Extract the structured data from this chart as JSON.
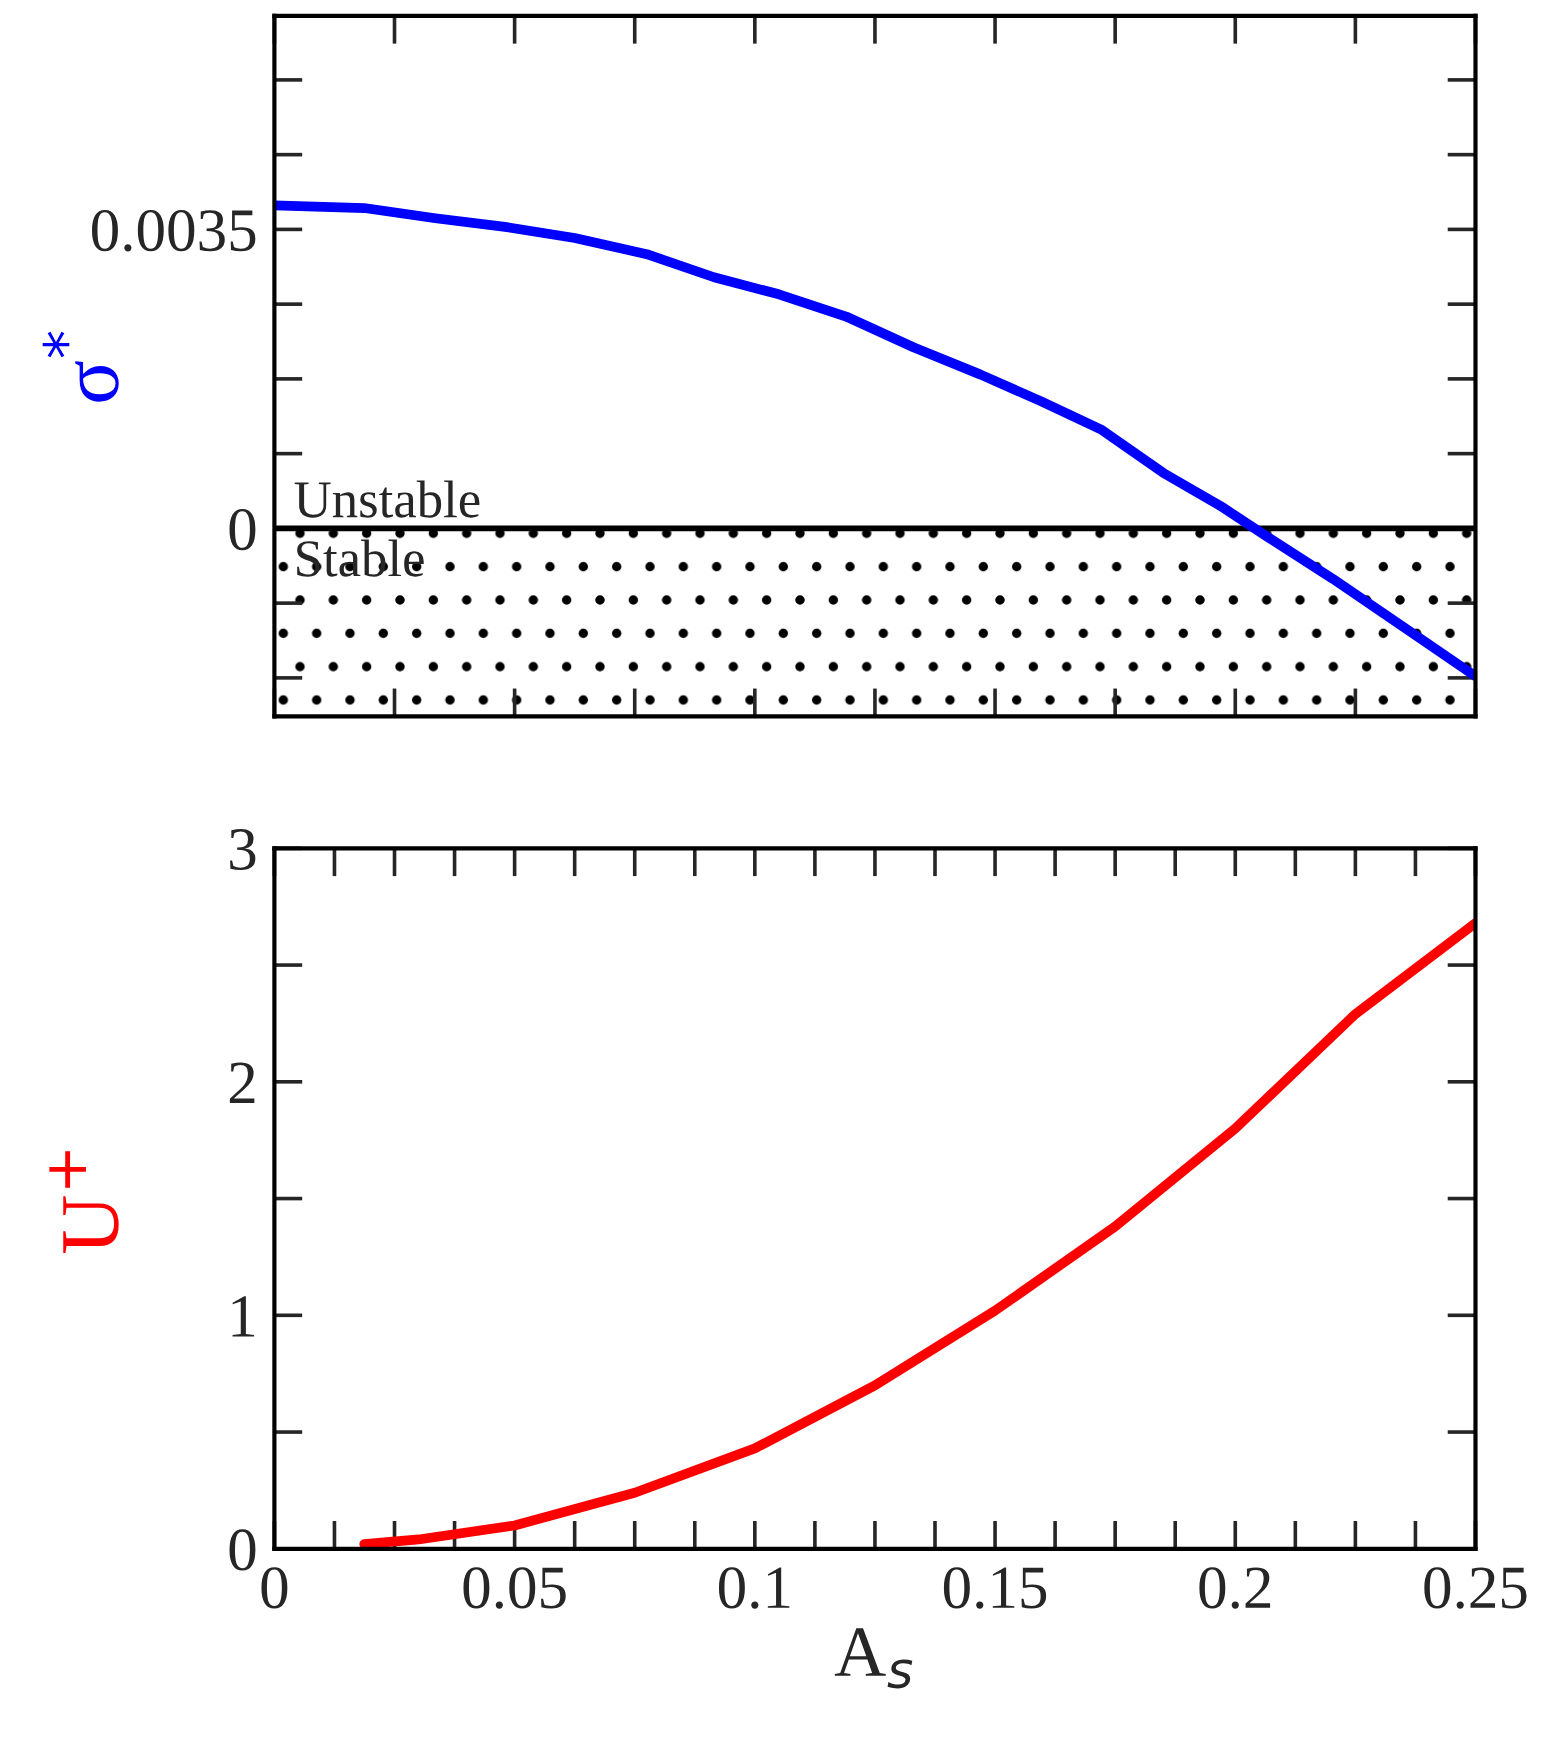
{
  "chart_data": [
    {
      "type": "line",
      "ylabel": "σ$^{*}$",
      "x": [
        0,
        0.0187,
        0.0335,
        0.048,
        0.0625,
        0.0775,
        0.0915,
        0.105,
        0.119,
        0.133,
        0.147,
        0.1595,
        0.172,
        0.185,
        0.197,
        0.2067,
        0.2203,
        0.2357,
        0.25
      ],
      "series": [
        {
          "color": "#0000ff",
          "values": [
            0.00378,
            0.00375,
            0.00363,
            0.00353,
            0.0034,
            0.00321,
            0.00294,
            0.00274,
            0.00248,
            0.00212,
            0.0018,
            0.00149,
            0.00116,
            0.00065,
            0.00026,
            -0.0001,
            -0.00059,
            -0.00118,
            -0.00173
          ]
        }
      ],
      "xlim": [
        0,
        0.25
      ],
      "xticks": [
        0,
        {
          "value": 0.025,
          "label": null
        },
        0.05,
        {
          "value": 0.075,
          "label": null
        },
        0.1,
        {
          "value": 0.125,
          "label": null
        },
        0.15,
        {
          "value": 0.175,
          "label": null
        },
        0.2,
        {
          "value": 0.225,
          "label": null
        },
        0.25
      ],
      "ylim": [
        -0.0022,
        0.006
      ],
      "yticks": [
        {
          "value": -0.00175,
          "label": null
        },
        {
          "value": -0.000875,
          "label": null
        },
        0,
        {
          "value": 0.000875,
          "label": null
        },
        {
          "value": 0.00175,
          "label": null
        },
        {
          "value": 0.002625,
          "label": null
        },
        0.0035,
        {
          "value": 0.004375,
          "label": null
        },
        {
          "value": 0.00525,
          "label": null
        }
      ],
      "tick_labels": "y",
      "grid": false,
      "legend": false,
      "bands": [
        {
          "axis": "y",
          "from": -0.0022,
          "to": 0,
          "label": "Stable"
        }
      ],
      "ref_lines": [
        {
          "axis": "y",
          "value": 0,
          "label": "Unstable"
        }
      ]
    },
    {
      "type": "line",
      "xlabel": "A$_{s}$",
      "ylabel": "U$^{+}$",
      "x": [
        0.0187,
        0.03,
        0.05,
        0.075,
        0.1,
        0.125,
        0.15,
        0.175,
        0.2,
        0.225,
        0.25
      ],
      "series": [
        {
          "color": "#ff0000",
          "values": [
            0.02,
            0.04,
            0.1,
            0.24,
            0.43,
            0.7,
            1.02,
            1.38,
            1.8,
            2.29,
            2.68
          ]
        }
      ],
      "xlim": [
        0,
        0.25
      ],
      "xticks": [
        0,
        {
          "value": 0.0125,
          "label": null
        },
        {
          "value": 0.025,
          "label": null
        },
        {
          "value": 0.0375,
          "label": null
        },
        0.05,
        {
          "value": 0.0625,
          "label": null
        },
        {
          "value": 0.075,
          "label": null
        },
        {
          "value": 0.0875,
          "label": null
        },
        0.1,
        {
          "value": 0.1125,
          "label": null
        },
        {
          "value": 0.125,
          "label": null
        },
        {
          "value": 0.1375,
          "label": null
        },
        0.15,
        {
          "value": 0.1625,
          "label": null
        },
        {
          "value": 0.175,
          "label": null
        },
        {
          "value": 0.1875,
          "label": null
        },
        0.2,
        {
          "value": 0.2125,
          "label": null
        },
        {
          "value": 0.225,
          "label": null
        },
        {
          "value": 0.2375,
          "label": null
        },
        0.25
      ],
      "ylim": [
        0,
        3
      ],
      "yticks": [
        0,
        {
          "value": 0.5,
          "label": null
        },
        1,
        {
          "value": 1.5,
          "label": null
        },
        2,
        {
          "value": 2.5,
          "label": null
        },
        3
      ],
      "grid": false,
      "legend": false
    }
  ]
}
